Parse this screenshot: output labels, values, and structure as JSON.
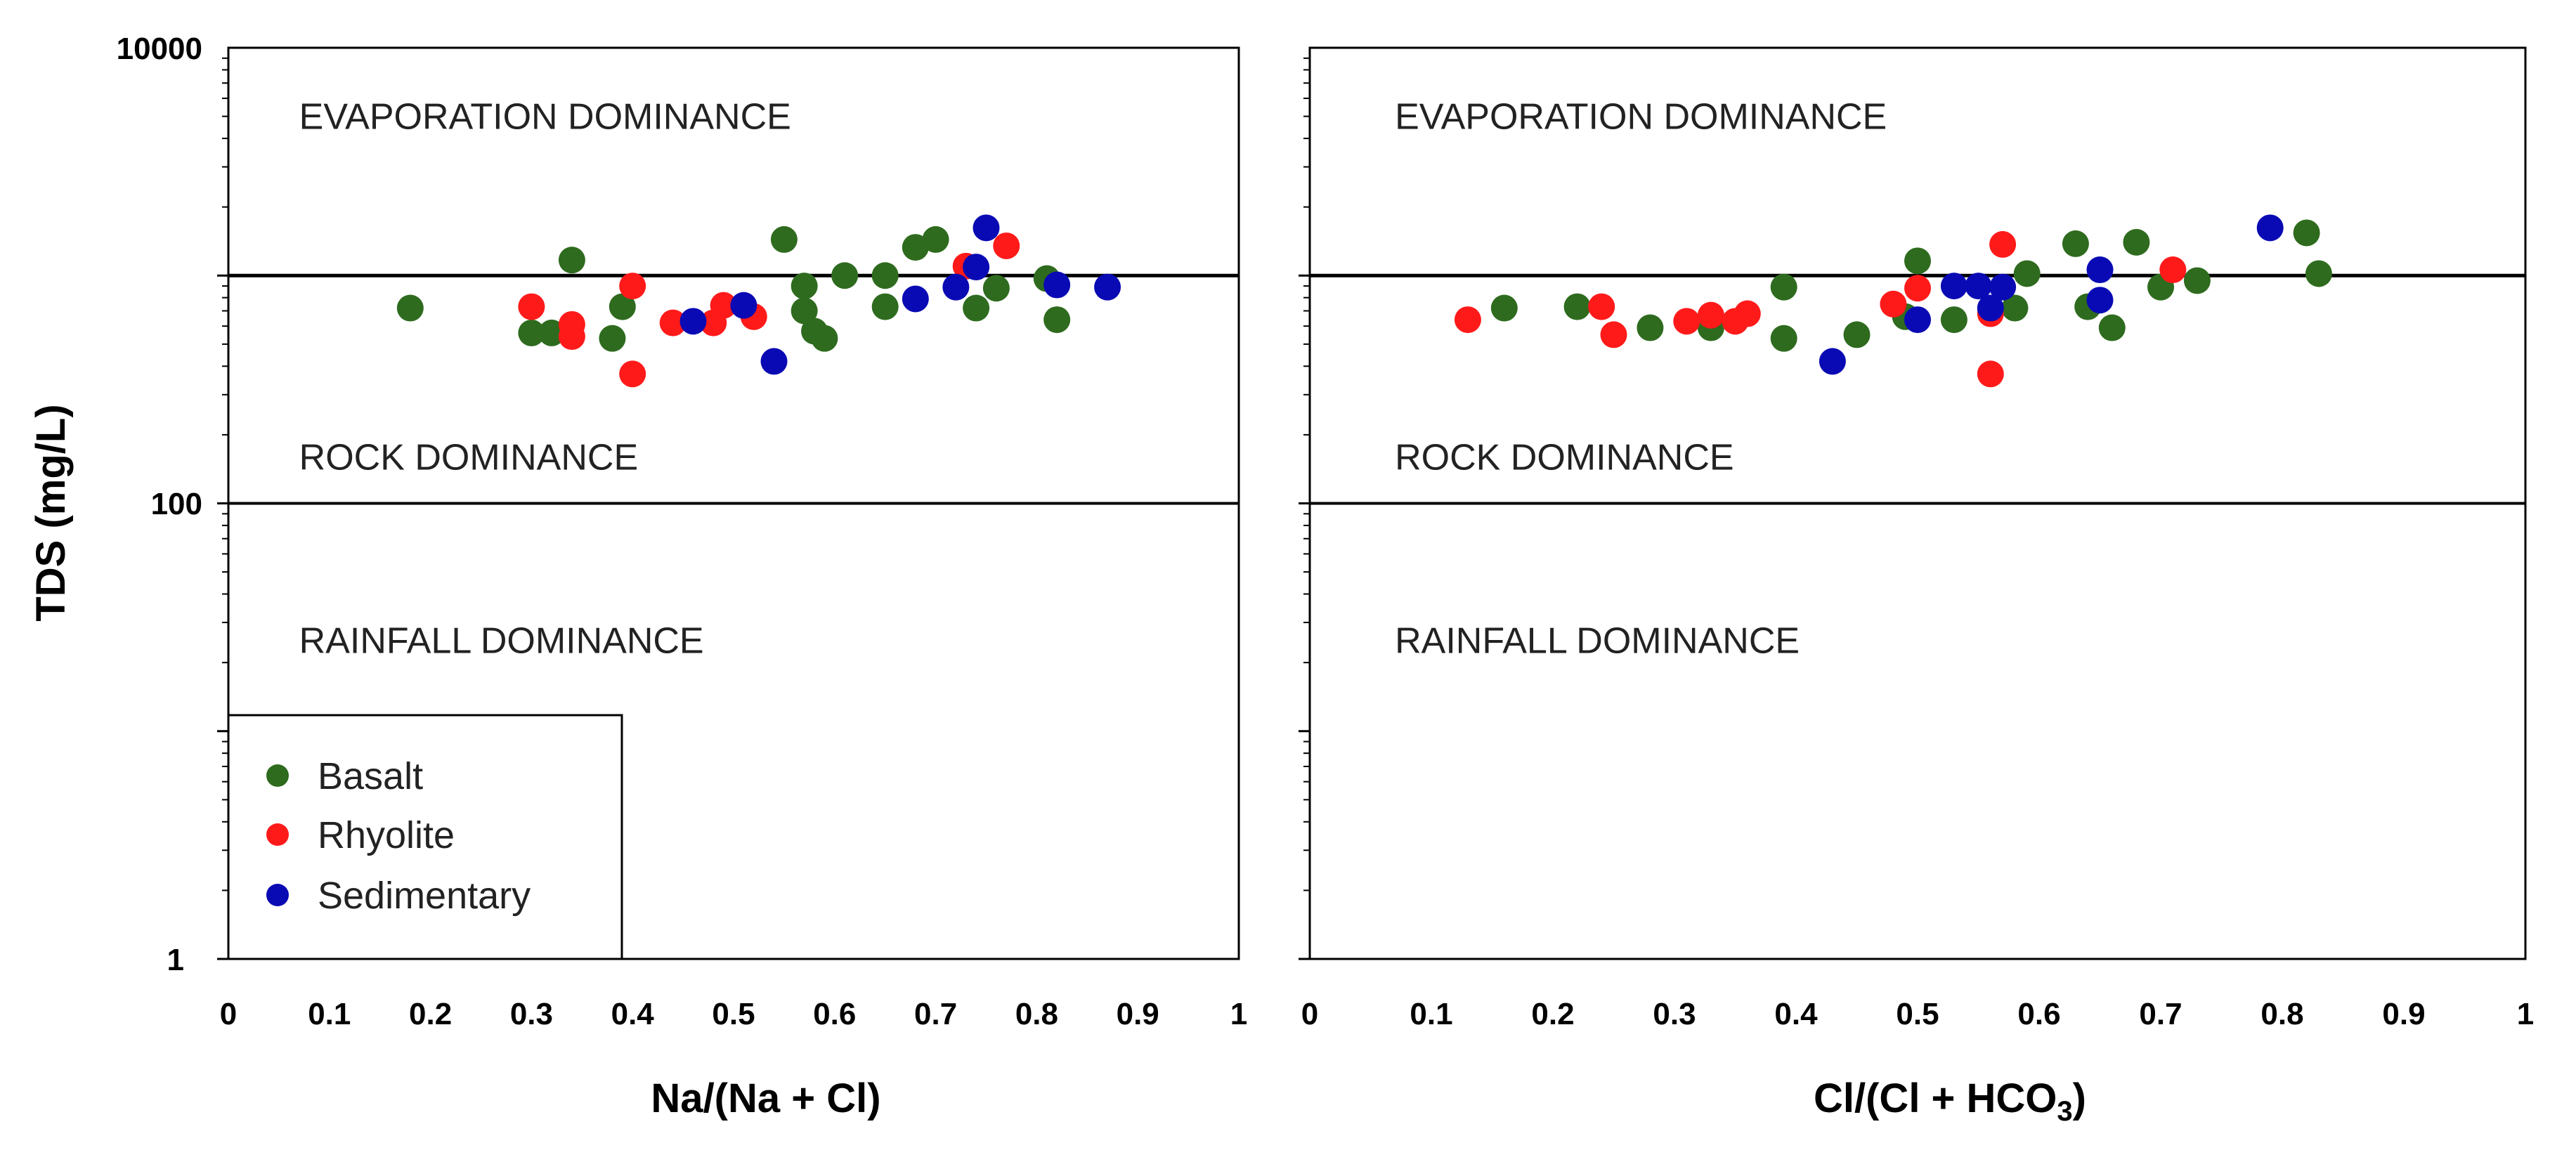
{
  "chart_data": [
    {
      "type": "scatter",
      "panel": "left",
      "xlabel": "Na/(Na + Cl)",
      "ylabel": "TDS (mg/L)",
      "xlim": [
        0,
        1
      ],
      "ylim": [
        1,
        10000
      ],
      "yscale": "log",
      "x_ticks": [
        "0",
        "0.1",
        "0.2",
        "0.3",
        "0.4",
        "0.5",
        "0.6",
        "0.7",
        "0.8",
        "0.9",
        "1"
      ],
      "y_ticks": [
        {
          "value": 1,
          "label": "1"
        },
        {
          "value": 100,
          "label": "100"
        },
        {
          "value": 10000,
          "label": "10000"
        }
      ],
      "reference_lines": [
        1000,
        100
      ],
      "zones": [
        {
          "label": "EVAPORATION DOMINANCE",
          "x": 0.07,
          "y": 5000
        },
        {
          "label": "ROCK DOMINANCE",
          "x": 0.07,
          "y": 160
        },
        {
          "label": "RAINFALL DOMINANCE",
          "x": 0.07,
          "y": 25
        }
      ],
      "legend": {
        "placement": "bottom-left",
        "entries": [
          {
            "name": "Basalt",
            "color": "#2e6b1e"
          },
          {
            "name": "Rhyolite",
            "color": "#ff1a1a"
          },
          {
            "name": "Sedimentary",
            "color": "#0a0ab4"
          }
        ]
      },
      "series": [
        {
          "name": "Basalt",
          "color": "#2e6b1e",
          "points": [
            [
              0.18,
              720
            ],
            [
              0.3,
              560
            ],
            [
              0.32,
              560
            ],
            [
              0.34,
              1170
            ],
            [
              0.38,
              530
            ],
            [
              0.39,
              730
            ],
            [
              0.55,
              1440
            ],
            [
              0.57,
              700
            ],
            [
              0.57,
              900
            ],
            [
              0.58,
              570
            ],
            [
              0.59,
              530
            ],
            [
              0.61,
              1000
            ],
            [
              0.65,
              730
            ],
            [
              0.65,
              1000
            ],
            [
              0.68,
              1330
            ],
            [
              0.7,
              1440
            ],
            [
              0.74,
              720
            ],
            [
              0.76,
              880
            ],
            [
              0.81,
              970
            ],
            [
              0.82,
              640
            ]
          ]
        },
        {
          "name": "Rhyolite",
          "color": "#ff1a1a",
          "points": [
            [
              0.3,
              730
            ],
            [
              0.34,
              540
            ],
            [
              0.34,
              610
            ],
            [
              0.4,
              900
            ],
            [
              0.4,
              370
            ],
            [
              0.44,
              620
            ],
            [
              0.48,
              620
            ],
            [
              0.49,
              740
            ],
            [
              0.52,
              660
            ],
            [
              0.73,
              1100
            ],
            [
              0.77,
              1350
            ]
          ]
        },
        {
          "name": "Sedimentary",
          "color": "#0a0ab4",
          "points": [
            [
              0.46,
              630
            ],
            [
              0.51,
              740
            ],
            [
              0.54,
              420
            ],
            [
              0.68,
              790
            ],
            [
              0.72,
              890
            ],
            [
              0.74,
              1090
            ],
            [
              0.75,
              1620
            ],
            [
              0.82,
              910
            ],
            [
              0.87,
              890
            ]
          ]
        }
      ]
    },
    {
      "type": "scatter",
      "panel": "right",
      "xlabel": "Cl/(Cl + HCO3)",
      "xlabel_main": "Cl/(Cl + HCO",
      "xlabel_sub": "3",
      "xlabel_end": ")",
      "xlim": [
        0,
        1
      ],
      "ylim": [
        1,
        10000
      ],
      "yscale": "log",
      "x_ticks": [
        "0",
        "0.1",
        "0.2",
        "0.3",
        "0.4",
        "0.5",
        "0.6",
        "0.7",
        "0.8",
        "0.9",
        "1"
      ],
      "reference_lines": [
        1000,
        100
      ],
      "zones": [
        {
          "label": "EVAPORATION DOMINANCE",
          "x": 0.07,
          "y": 5000
        },
        {
          "label": "ROCK DOMINANCE",
          "x": 0.07,
          "y": 160
        },
        {
          "label": "RAINFALL DOMINANCE",
          "x": 0.07,
          "y": 25
        }
      ],
      "series": [
        {
          "name": "Basalt",
          "color": "#2e6b1e",
          "points": [
            [
              0.16,
              720
            ],
            [
              0.22,
              730
            ],
            [
              0.28,
              590
            ],
            [
              0.33,
              590
            ],
            [
              0.39,
              890
            ],
            [
              0.39,
              530
            ],
            [
              0.45,
              550
            ],
            [
              0.49,
              660
            ],
            [
              0.5,
              1160
            ],
            [
              0.53,
              640
            ],
            [
              0.58,
              720
            ],
            [
              0.59,
              1020
            ],
            [
              0.63,
              1380
            ],
            [
              0.64,
              730
            ],
            [
              0.66,
              590
            ],
            [
              0.68,
              1400
            ],
            [
              0.7,
              890
            ],
            [
              0.73,
              950
            ],
            [
              0.82,
              1540
            ],
            [
              0.83,
              1020
            ]
          ]
        },
        {
          "name": "Rhyolite",
          "color": "#ff1a1a",
          "points": [
            [
              0.13,
              640
            ],
            [
              0.24,
              730
            ],
            [
              0.25,
              550
            ],
            [
              0.31,
              630
            ],
            [
              0.33,
              670
            ],
            [
              0.35,
              630
            ],
            [
              0.36,
              680
            ],
            [
              0.48,
              750
            ],
            [
              0.5,
              880
            ],
            [
              0.56,
              680
            ],
            [
              0.56,
              370
            ],
            [
              0.57,
              1370
            ],
            [
              0.71,
              1060
            ]
          ]
        },
        {
          "name": "Sedimentary",
          "color": "#0a0ab4",
          "points": [
            [
              0.43,
              420
            ],
            [
              0.5,
              640
            ],
            [
              0.53,
              900
            ],
            [
              0.55,
              900
            ],
            [
              0.56,
              720
            ],
            [
              0.57,
              890
            ],
            [
              0.65,
              1060
            ],
            [
              0.65,
              780
            ],
            [
              0.79,
              1620
            ]
          ]
        }
      ]
    }
  ]
}
